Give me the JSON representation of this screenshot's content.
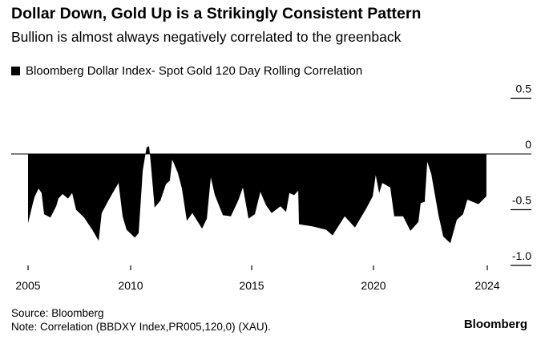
{
  "header": {
    "title": "Dollar Down, Gold Up is a Strikingly Consistent Pattern",
    "subtitle": "Bullion is almost always negatively correlated to the greenback"
  },
  "footer": {
    "source": "Source: Bloomberg",
    "note": "Note: Correlation (BBDXY Index,PR005,120,0) (XAU).",
    "brand": "Bloomberg"
  },
  "chart_data": {
    "type": "area",
    "title": "Dollar Down, Gold Up is a Strikingly Consistent Pattern",
    "legend": [
      {
        "label": "Bloomberg Dollar Index- Spot Gold 120 Day Rolling Correlation",
        "color": "#000000"
      }
    ],
    "legend_placement": "top-left",
    "xlabel": "",
    "ylabel": "",
    "x_ticks": [
      2005,
      2010,
      2015,
      2020,
      2024
    ],
    "x_tick_labels": [
      "2005",
      "2010",
      "2015",
      "2020",
      "2024"
    ],
    "y_ticks": [
      0.5,
      0,
      -0.5,
      -1.0
    ],
    "y_tick_labels": [
      "0.5",
      "0",
      "-0.5",
      "-1.0"
    ],
    "ylim": [
      -1.0,
      0.5
    ],
    "series": [
      {
        "name": "Bloomberg Dollar Index- Spot Gold 120 Day Rolling Correlation",
        "x": [
          2005.0,
          2005.2,
          2005.31,
          2005.51,
          2005.66,
          2005.78,
          2006.09,
          2006.37,
          2006.48,
          2006.68,
          2006.95,
          2007.15,
          2007.34,
          2007.73,
          2008.13,
          2008.44,
          2008.59,
          2008.91,
          2009.22,
          2009.41,
          2009.61,
          2009.8,
          2010.17,
          2010.33,
          2010.5,
          2010.66,
          2010.76,
          2010.83,
          2010.99,
          2011.23,
          2011.46,
          2011.62,
          2011.72,
          2011.95,
          2012.12,
          2012.32,
          2012.55,
          2012.95,
          2013.15,
          2013.31,
          2013.48,
          2013.81,
          2014.14,
          2014.44,
          2014.64,
          2014.87,
          2015.13,
          2015.36,
          2015.59,
          2015.82,
          2016.18,
          2016.41,
          2016.55,
          2016.74,
          2016.91,
          2016.94,
          2017.5,
          2018.06,
          2018.32,
          2018.82,
          2019.24,
          2019.7,
          2019.97,
          2020.08,
          2020.2,
          2020.31,
          2020.59,
          2020.73,
          2021.04,
          2021.3,
          2021.58,
          2021.66,
          2021.8,
          2021.89,
          2022.03,
          2022.28,
          2022.45,
          2022.7,
          2022.93,
          2023.15,
          2023.3,
          2023.69,
          2023.97
        ],
        "y": [
          -0.62,
          -0.47,
          -0.39,
          -0.31,
          -0.35,
          -0.54,
          -0.57,
          -0.47,
          -0.4,
          -0.36,
          -0.4,
          -0.35,
          -0.5,
          -0.57,
          -0.68,
          -0.78,
          -0.53,
          -0.42,
          -0.32,
          -0.26,
          -0.56,
          -0.68,
          -0.75,
          -0.71,
          -0.15,
          0.06,
          0.07,
          -0.08,
          -0.48,
          -0.42,
          -0.27,
          -0.24,
          -0.05,
          -0.17,
          -0.31,
          -0.6,
          -0.53,
          -0.67,
          -0.58,
          -0.21,
          -0.37,
          -0.55,
          -0.56,
          -0.42,
          -0.3,
          -0.58,
          -0.54,
          -0.34,
          -0.46,
          -0.53,
          -0.47,
          -0.52,
          -0.35,
          -0.37,
          -0.33,
          -0.63,
          -0.65,
          -0.68,
          -0.73,
          -0.56,
          -0.66,
          -0.49,
          -0.38,
          -0.19,
          -0.35,
          -0.26,
          -0.3,
          -0.56,
          -0.56,
          -0.69,
          -0.61,
          -0.44,
          -0.43,
          -0.07,
          -0.18,
          -0.54,
          -0.74,
          -0.8,
          -0.59,
          -0.54,
          -0.41,
          -0.45,
          -0.38
        ]
      }
    ]
  }
}
